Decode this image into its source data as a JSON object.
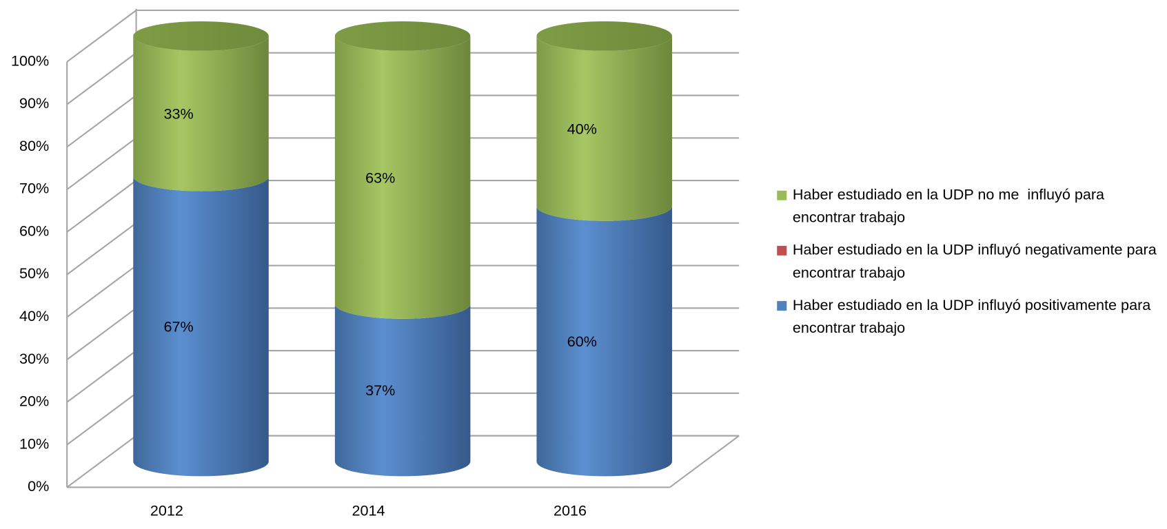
{
  "chart_data": {
    "type": "bar3d-stacked-cylinder",
    "categories": [
      "2012",
      "2014",
      "2016"
    ],
    "series": [
      {
        "name": "Haber estudiado en la UDP influyó positivamente para encontrar trabajo",
        "color": "#4f81bd",
        "values": [
          67,
          37,
          60
        ],
        "value_labels": [
          "67%",
          "37%",
          "60%"
        ]
      },
      {
        "name": "Haber estudiado en la UDP influyó negativamente para encontrar trabajo",
        "color": "#c0504d",
        "values": [
          0,
          0,
          0
        ]
      },
      {
        "name": "Haber estudiado en la UDP no me  influyó para encontrar trabajo",
        "color": "#9bbb59",
        "values": [
          33,
          63,
          40
        ],
        "value_labels": [
          "33%",
          "63%",
          "40%"
        ]
      }
    ],
    "ylim": [
      0,
      100
    ],
    "yticks": [
      {
        "value": 0,
        "label": "0%"
      },
      {
        "value": 10,
        "label": "10%"
      },
      {
        "value": 20,
        "label": "20%"
      },
      {
        "value": 30,
        "label": "30%"
      },
      {
        "value": 40,
        "label": "40%"
      },
      {
        "value": 50,
        "label": "50%"
      },
      {
        "value": 60,
        "label": "60%"
      },
      {
        "value": 70,
        "label": "70%"
      },
      {
        "value": 80,
        "label": "80%"
      },
      {
        "value": 90,
        "label": "90%"
      },
      {
        "value": 100,
        "label": "100%"
      }
    ],
    "grid": true,
    "legend": "right"
  }
}
